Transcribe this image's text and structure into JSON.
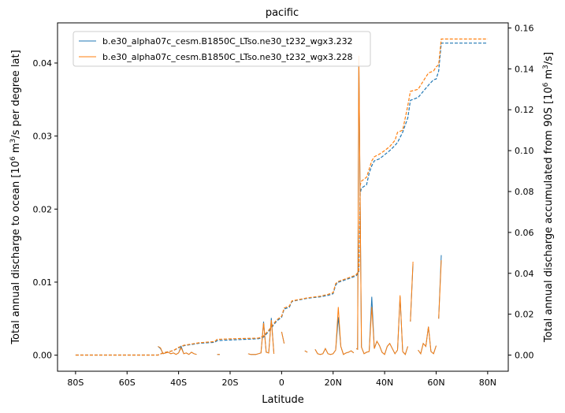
{
  "chart_data": {
    "type": "line",
    "title": "pacific",
    "xlabel": "Latitude",
    "ylabel_left_parts": [
      "Total annual discharge to ocean [10",
      "6",
      " m",
      "3",
      "/s per degree lat]"
    ],
    "ylabel_right_parts": [
      "Total annual discharge accumulated from 90S [10",
      "6",
      " m",
      "3",
      "/s]"
    ],
    "xlim": [
      -87,
      88
    ],
    "ylim_left": [
      -0.0022,
      0.0455
    ],
    "ylim_right": [
      -0.0079,
      0.1625
    ],
    "xticks": [
      -80,
      -60,
      -40,
      -20,
      0,
      20,
      40,
      60,
      80
    ],
    "xtick_labels": [
      "80S",
      "60S",
      "40S",
      "20S",
      "0",
      "20N",
      "40N",
      "60N",
      "80N"
    ],
    "yticks_left": [
      0.0,
      0.01,
      0.02,
      0.03,
      0.04
    ],
    "ytick_labels_left": [
      "0.00",
      "0.01",
      "0.02",
      "0.03",
      "0.04"
    ],
    "yticks_right": [
      0.0,
      0.02,
      0.04,
      0.06,
      0.08,
      0.1,
      0.12,
      0.14,
      0.16
    ],
    "ytick_labels_right": [
      "0.00",
      "0.02",
      "0.04",
      "0.06",
      "0.08",
      "0.10",
      "0.12",
      "0.14",
      "0.16"
    ],
    "legend_position": "upper-left",
    "series": [
      {
        "name": "b.e30_alpha07c_cesm.B1850C_LTso.ne30_t232_wgx3.232",
        "color": "#1f77b4",
        "discharge": [
          [
            -48,
            0.0012
          ],
          [
            -47,
            0.0009
          ],
          [
            -46,
            0.0002
          ],
          [
            -45,
            0.0003
          ],
          [
            -44,
            0.0004
          ],
          [
            -43,
            0.0002
          ],
          [
            -42,
            0.0003
          ],
          [
            -41,
            0.0001
          ],
          [
            -40,
            0.0003
          ],
          [
            -39,
            0.0012
          ],
          [
            -38,
            0.0002
          ],
          [
            -37,
            0.0003
          ],
          [
            -36,
            0.0001
          ],
          [
            -35,
            0.0004
          ],
          [
            -34,
            0.0002
          ],
          [
            -33,
            0.0001
          ],
          null,
          [
            -25,
            0.0001
          ],
          [
            -24,
            0.0001
          ],
          null,
          [
            -13,
            0.0002
          ],
          [
            -12,
            0.0001
          ],
          [
            -11,
            0.0001
          ],
          [
            -10,
            0.0001
          ],
          [
            -9,
            0.0002
          ],
          [
            -8,
            0.0003
          ],
          [
            -7,
            0.0046
          ],
          [
            -6,
            0.0004
          ],
          [
            -5,
            0.0003
          ],
          [
            -4,
            0.0051
          ],
          [
            -3,
            0.0002
          ],
          null,
          [
            0,
            0.0032
          ],
          [
            1,
            0.0016
          ],
          null,
          [
            9,
            0.0006
          ],
          [
            10,
            0.0004
          ],
          null,
          [
            13,
            0.0008
          ],
          [
            14,
            0.0002
          ],
          [
            15,
            0.0001
          ],
          [
            16,
            0.0002
          ],
          [
            17,
            0.0009
          ],
          [
            18,
            0.0002
          ],
          [
            19,
            0.0001
          ],
          [
            20,
            0.0002
          ],
          [
            21,
            0.0007
          ],
          [
            22,
            0.0052
          ],
          [
            23,
            0.0012
          ],
          [
            24,
            0.0001
          ],
          [
            25,
            0.0003
          ],
          [
            26,
            0.0004
          ],
          [
            27,
            0.0006
          ],
          [
            28,
            0.0003
          ],
          null,
          [
            29,
            0.0009
          ],
          [
            29.5,
            0.0008
          ],
          [
            30,
            0.0405
          ],
          [
            31,
            0.0011
          ],
          [
            32,
            0.0002
          ],
          [
            33,
            0.0004
          ],
          [
            34,
            0.0005
          ],
          [
            35,
            0.008
          ],
          [
            36,
            0.0009
          ],
          [
            37,
            0.0019
          ],
          [
            38,
            0.0013
          ],
          [
            39,
            0.0004
          ],
          [
            40,
            0.0001
          ],
          [
            41,
            0.0012
          ],
          [
            42,
            0.0016
          ],
          [
            43,
            0.0009
          ],
          [
            44,
            0.0002
          ],
          [
            45,
            0.0007
          ],
          [
            46,
            0.008
          ],
          [
            47,
            0.0005
          ],
          [
            48,
            0.0001
          ],
          [
            49,
            0.0012
          ],
          null,
          [
            50,
            0.0046
          ],
          [
            51,
            0.0125
          ],
          null,
          [
            53,
            0.0007
          ],
          [
            54,
            0.0002
          ],
          [
            55,
            0.0016
          ],
          [
            56,
            0.0012
          ],
          [
            57,
            0.0039
          ],
          [
            58,
            0.0005
          ],
          [
            59,
            0.0002
          ],
          [
            60,
            0.0013
          ],
          null,
          [
            61,
            0.005
          ],
          [
            62,
            0.0137
          ]
        ],
        "accumulated": [
          [
            -80,
            0.0
          ],
          [
            -48,
            0.0
          ],
          [
            -46,
            0.0011
          ],
          [
            -42,
            0.0022
          ],
          [
            -40,
            0.0036
          ],
          [
            -38,
            0.0046
          ],
          [
            -32,
            0.0058
          ],
          [
            -26,
            0.0062
          ],
          [
            -25,
            0.0071
          ],
          [
            -16,
            0.0076
          ],
          [
            -9,
            0.008
          ],
          [
            -7,
            0.0088
          ],
          [
            -5,
            0.0116
          ],
          [
            -2,
            0.0165
          ],
          [
            0,
            0.0185
          ],
          [
            1,
            0.0225
          ],
          [
            3,
            0.0234
          ],
          [
            4,
            0.0262
          ],
          [
            6,
            0.0268
          ],
          [
            10,
            0.0278
          ],
          [
            15,
            0.0285
          ],
          [
            18,
            0.0292
          ],
          [
            20,
            0.03
          ],
          [
            21,
            0.0343
          ],
          [
            22,
            0.0356
          ],
          [
            28,
            0.0383
          ],
          [
            29,
            0.0389
          ],
          [
            30,
            0.0404
          ],
          [
            30.5,
            0.0792
          ],
          [
            31,
            0.0817
          ],
          [
            33,
            0.0833
          ],
          [
            34,
            0.089
          ],
          [
            35,
            0.0926
          ],
          [
            36,
            0.095
          ],
          [
            38,
            0.096
          ],
          [
            40,
            0.098
          ],
          [
            42,
            0.1
          ],
          [
            44,
            0.1025
          ],
          [
            45,
            0.104
          ],
          [
            47,
            0.109
          ],
          [
            49,
            0.116
          ],
          [
            50,
            0.1246
          ],
          [
            53,
            0.126
          ],
          [
            55,
            0.129
          ],
          [
            57,
            0.132
          ],
          [
            59,
            0.1347
          ],
          [
            60,
            0.135
          ],
          [
            61,
            0.139
          ],
          [
            62,
            0.1526
          ],
          [
            80,
            0.1526
          ]
        ]
      },
      {
        "name": "b.e30_alpha07c_cesm.B1850C_LTso.ne30_t232_wgx3.228",
        "color": "#ff7f0e",
        "discharge": [
          [
            -48,
            0.0012
          ],
          [
            -47,
            0.001
          ],
          [
            -46,
            0.0002
          ],
          [
            -45,
            0.0003
          ],
          [
            -44,
            0.0004
          ],
          [
            -43,
            0.0002
          ],
          [
            -42,
            0.0003
          ],
          [
            -41,
            0.0001
          ],
          [
            -40,
            0.0003
          ],
          [
            -39,
            0.001
          ],
          [
            -38,
            0.0002
          ],
          [
            -37,
            0.0003
          ],
          [
            -36,
            0.0001
          ],
          [
            -35,
            0.0004
          ],
          [
            -34,
            0.0002
          ],
          [
            -33,
            0.0001
          ],
          null,
          [
            -25,
            0.0001
          ],
          [
            -24,
            0.0001
          ],
          null,
          [
            -13,
            0.0002
          ],
          [
            -12,
            0.0001
          ],
          [
            -11,
            0.0001
          ],
          [
            -10,
            0.0001
          ],
          [
            -9,
            0.0002
          ],
          [
            -8,
            0.0003
          ],
          [
            -7,
            0.0044
          ],
          [
            -6,
            0.0004
          ],
          [
            -5,
            0.0003
          ],
          [
            -4,
            0.0048
          ],
          [
            -3,
            0.0002
          ],
          null,
          [
            0,
            0.0032
          ],
          [
            1,
            0.0016
          ],
          null,
          [
            9,
            0.0006
          ],
          [
            10,
            0.0004
          ],
          null,
          [
            13,
            0.0008
          ],
          [
            14,
            0.0002
          ],
          [
            15,
            0.0001
          ],
          [
            16,
            0.0002
          ],
          [
            17,
            0.0009
          ],
          [
            18,
            0.0002
          ],
          [
            19,
            0.0001
          ],
          [
            20,
            0.0002
          ],
          [
            21,
            0.0007
          ],
          [
            22,
            0.0066
          ],
          [
            23,
            0.0012
          ],
          [
            24,
            0.0001
          ],
          [
            25,
            0.0003
          ],
          [
            26,
            0.0004
          ],
          [
            27,
            0.0006
          ],
          [
            28,
            0.0003
          ],
          null,
          [
            29,
            0.0009
          ],
          [
            29.5,
            0.0008
          ],
          [
            30,
            0.041
          ],
          [
            31,
            0.0011
          ],
          [
            32,
            0.0002
          ],
          [
            33,
            0.0004
          ],
          [
            34,
            0.0005
          ],
          [
            35,
            0.0066
          ],
          [
            36,
            0.0009
          ],
          [
            37,
            0.0019
          ],
          [
            38,
            0.0013
          ],
          [
            39,
            0.0004
          ],
          [
            40,
            0.0001
          ],
          [
            41,
            0.0012
          ],
          [
            42,
            0.0016
          ],
          [
            43,
            0.0009
          ],
          [
            44,
            0.0002
          ],
          [
            45,
            0.0007
          ],
          [
            46,
            0.0082
          ],
          [
            47,
            0.0005
          ],
          [
            48,
            0.0001
          ],
          [
            49,
            0.0012
          ],
          null,
          [
            50,
            0.0046
          ],
          [
            51,
            0.0128
          ],
          null,
          [
            53,
            0.0007
          ],
          [
            54,
            0.0002
          ],
          [
            55,
            0.0016
          ],
          [
            56,
            0.0012
          ],
          [
            57,
            0.0039
          ],
          [
            58,
            0.0005
          ],
          [
            59,
            0.0002
          ],
          [
            60,
            0.0013
          ],
          null,
          [
            61,
            0.005
          ],
          [
            62,
            0.013
          ]
        ],
        "accumulated": [
          [
            -80,
            0.0
          ],
          [
            -48,
            0.0
          ],
          [
            -46,
            0.0011
          ],
          [
            -42,
            0.0022
          ],
          [
            -40,
            0.0038
          ],
          [
            -38,
            0.0048
          ],
          [
            -32,
            0.006
          ],
          [
            -26,
            0.0066
          ],
          [
            -25,
            0.0077
          ],
          [
            -16,
            0.0081
          ],
          [
            -9,
            0.0083
          ],
          [
            -7,
            0.0094
          ],
          [
            -5,
            0.0121
          ],
          [
            -2,
            0.0171
          ],
          [
            0,
            0.019
          ],
          [
            1,
            0.023
          ],
          [
            3,
            0.024
          ],
          [
            4,
            0.0265
          ],
          [
            6,
            0.027
          ],
          [
            10,
            0.028
          ],
          [
            15,
            0.0288
          ],
          [
            18,
            0.0297
          ],
          [
            20,
            0.0305
          ],
          [
            21,
            0.035
          ],
          [
            22,
            0.036
          ],
          [
            28,
            0.0387
          ],
          [
            29,
            0.0395
          ],
          [
            30,
            0.041
          ],
          [
            30.5,
            0.083
          ],
          [
            31,
            0.0851
          ],
          [
            33,
            0.087
          ],
          [
            34,
            0.091
          ],
          [
            35,
            0.095
          ],
          [
            36,
            0.097
          ],
          [
            38,
            0.0983
          ],
          [
            40,
            0.1
          ],
          [
            42,
            0.102
          ],
          [
            44,
            0.105
          ],
          [
            45,
            0.109
          ],
          [
            47,
            0.11
          ],
          [
            49,
            0.122
          ],
          [
            50,
            0.129
          ],
          [
            53,
            0.13
          ],
          [
            55,
            0.134
          ],
          [
            57,
            0.138
          ],
          [
            59,
            0.139
          ],
          [
            60,
            0.141
          ],
          [
            61,
            0.142
          ],
          [
            62,
            0.1546
          ],
          [
            80,
            0.1546
          ]
        ]
      }
    ]
  }
}
